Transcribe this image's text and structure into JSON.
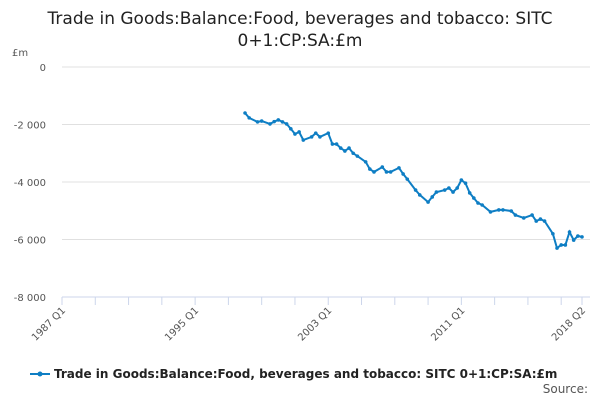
{
  "chart_data": {
    "type": "line",
    "title": "Trade in Goods:Balance:Food, beverages and tobacco: SITC 0+1:CP:SA:£m",
    "title_lines": [
      "Trade in Goods:Balance:Food, beverages and tobacco: SITC",
      "0+1:CP:SA:£m"
    ],
    "ylabel": "£m",
    "xlabel": "",
    "ylim": [
      -8000,
      0
    ],
    "xlim": [
      1987,
      2018.25
    ],
    "y_ticks": [
      0,
      -2000,
      -4000,
      -6000,
      -8000
    ],
    "y_tick_labels": [
      "0",
      "-2 000",
      "-4 000",
      "-6 000",
      "-8 000"
    ],
    "x_ticks": [
      1987,
      1995,
      2003,
      2011,
      2018.25
    ],
    "x_tick_labels": [
      "1987 Q1",
      "1995 Q1",
      "2003 Q1",
      "2011 Q1",
      "2018 Q2"
    ],
    "grid": true,
    "legend_position": "bottom",
    "color": "#0e7ec4",
    "series": [
      {
        "name": "Trade in Goods:Balance:Food, beverages and tobacco: SITC 0+1:CP:SA:£m",
        "x": [
          1998,
          1998.25,
          1998.75,
          1999,
          1999.5,
          1999.75,
          2000,
          2000.25,
          2000.5,
          2000.75,
          2001,
          2001.25,
          2001.5,
          2002,
          2002.25,
          2002.5,
          2003,
          2003.25,
          2003.5,
          2003.75,
          2004,
          2004.25,
          2004.5,
          2004.75,
          2005.25,
          2005.5,
          2005.75,
          2006.25,
          2006.5,
          2006.75,
          2007.25,
          2007.5,
          2007.75,
          2008.25,
          2008.5,
          2009,
          2009.25,
          2009.5,
          2010,
          2010.25,
          2010.5,
          2010.75,
          2011,
          2011.25,
          2011.5,
          2011.75,
          2012,
          2012.25,
          2012.75,
          2013.25,
          2013.5,
          2014,
          2014.25,
          2014.75,
          2015.25,
          2015.5,
          2015.75,
          2016,
          2016.5,
          2016.75,
          2017,
          2017.25,
          2017.5,
          2017.75,
          2018,
          2018.25
        ],
        "values": [
          -1600,
          -1770,
          -1910,
          -1880,
          -1980,
          -1900,
          -1840,
          -1910,
          -1980,
          -2150,
          -2330,
          -2260,
          -2540,
          -2430,
          -2300,
          -2430,
          -2300,
          -2680,
          -2680,
          -2820,
          -2920,
          -2820,
          -3000,
          -3100,
          -3300,
          -3550,
          -3650,
          -3480,
          -3650,
          -3650,
          -3510,
          -3720,
          -3900,
          -4280,
          -4450,
          -4700,
          -4520,
          -4350,
          -4280,
          -4210,
          -4350,
          -4210,
          -3930,
          -4040,
          -4380,
          -4560,
          -4730,
          -4800,
          -5040,
          -4970,
          -4970,
          -5010,
          -5150,
          -5250,
          -5150,
          -5360,
          -5290,
          -5360,
          -5800,
          -6300,
          -6190,
          -6190,
          -5740,
          -6020,
          -5880,
          -5910
        ]
      }
    ],
    "source_label": "Source:"
  }
}
